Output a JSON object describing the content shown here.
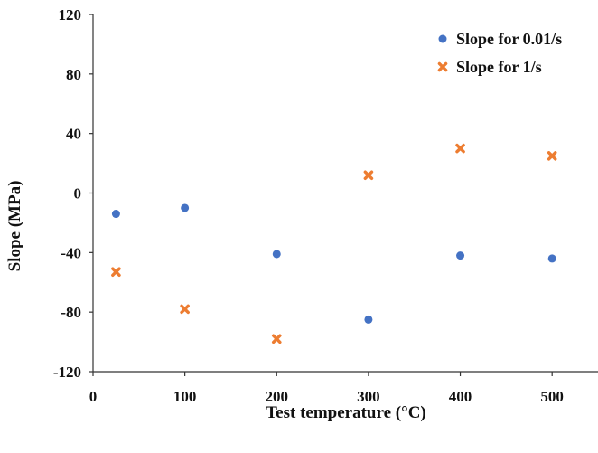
{
  "chart_data": {
    "type": "scatter",
    "title": "",
    "xlabel": "Test temperature (°C)",
    "ylabel": "Slope (MPa)",
    "xlim": [
      0,
      550
    ],
    "ylim": [
      -120,
      120
    ],
    "xticks": [
      0,
      100,
      200,
      300,
      400,
      500
    ],
    "yticks": [
      -120,
      -80,
      -40,
      0,
      40,
      80,
      120
    ],
    "grid": false,
    "legend_position": "top-right",
    "series": [
      {
        "name": "Slope for 0.01/s",
        "marker": "circle",
        "color": "#4472C4",
        "x": [
          25,
          100,
          200,
          300,
          400,
          500
        ],
        "y": [
          -14,
          -10,
          -41,
          -85,
          -42,
          -44
        ]
      },
      {
        "name": "Slope for 1/s",
        "marker": "x",
        "color": "#ED7D31",
        "x": [
          25,
          100,
          200,
          300,
          400,
          500
        ],
        "y": [
          -53,
          -78,
          -98,
          12,
          30,
          25
        ]
      }
    ]
  }
}
